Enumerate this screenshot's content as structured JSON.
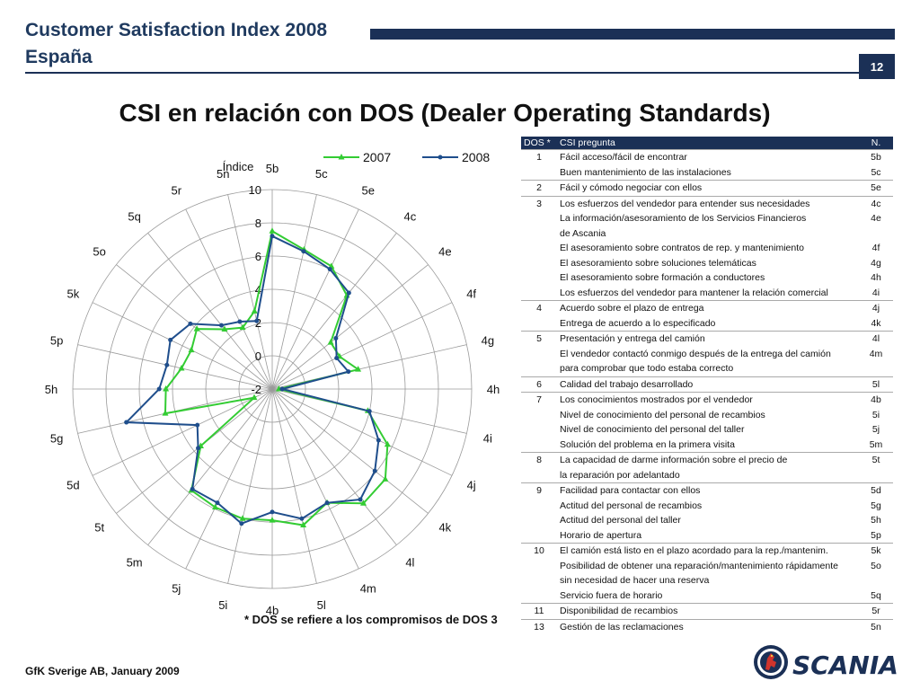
{
  "header": {
    "title": "Customer Satisfaction Index 2008",
    "subtitle": "España",
    "page_number": "12"
  },
  "main_title": "CSI en relación con DOS (Dealer Operating Standards)",
  "chart_data": {
    "type": "radar",
    "y_label": "Índice",
    "rlim": [
      -2,
      10
    ],
    "ticks": [
      "10",
      "8",
      "6",
      "4",
      "2",
      "0",
      "-2"
    ],
    "tick_values": [
      10,
      8,
      6,
      4,
      2,
      0,
      -2
    ],
    "categories": [
      "5b",
      "5c",
      "5e",
      "4c",
      "4e",
      "4f",
      "4g",
      "4h",
      "4i",
      "4j",
      "4k",
      "4l",
      "4m",
      "5l",
      "4b",
      "5i",
      "5j",
      "5m",
      "5t",
      "5d",
      "5g",
      "5h",
      "5p",
      "5k",
      "5o",
      "5q",
      "5r",
      "5n"
    ],
    "legend_position": "top-right",
    "series": [
      {
        "name": "2007",
        "color": "#33cc33",
        "values": [
          7.5,
          6.6,
          6.2,
          5.2,
          2.5,
          2.5,
          3.3,
          -1.6,
          3.9,
          5.7,
          6.7,
          6.8,
          5.6,
          6.4,
          5.9,
          6.0,
          5.9,
          5.8,
          3.5,
          -0.8,
          4.6,
          4.4,
          3.6,
          3.4,
          3.8,
          2.6,
          2.1,
          2.8
        ]
      },
      {
        "name": "2008",
        "color": "#1f4e8c",
        "values": [
          7.2,
          6.5,
          6.0,
          5.4,
          2.9,
          2.3,
          2.7,
          -1.4,
          4.0,
          5.1,
          5.9,
          6.5,
          5.6,
          6.0,
          5.4,
          6.3,
          5.6,
          5.7,
          3.7,
          3.0,
          7.0,
          4.8,
          4.5,
          4.8,
          4.3,
          2.9,
          2.5,
          2.2
        ]
      }
    ]
  },
  "footnote": "* DOS se refiere a los compromisos de DOS 3",
  "table": {
    "headers": [
      "DOS *",
      "CSI pregunta",
      "N."
    ],
    "rows": [
      {
        "group": "1",
        "text": "Fácil acceso/fácil de encontrar",
        "n": "5b",
        "first": true
      },
      {
        "group": "",
        "text": "Buen mantenimiento de las instalaciones",
        "n": "5c"
      },
      {
        "group": "2",
        "text": "Fácil y cómodo negociar con ellos",
        "n": "5e",
        "first": true
      },
      {
        "group": "3",
        "text": "Los esfuerzos del vendedor para entender sus necesidades",
        "n": "4c",
        "first": true
      },
      {
        "group": "",
        "text": "La información/asesoramiento de los Servicios Financieros",
        "n": "4e"
      },
      {
        "group": "",
        "text": "de Ascania",
        "n": ""
      },
      {
        "group": "",
        "text": "El asesoramiento sobre contratos de rep. y mantenimiento",
        "n": "4f"
      },
      {
        "group": "",
        "text": "El asesoramiento sobre soluciones telemáticas",
        "n": "4g"
      },
      {
        "group": "",
        "text": "El asesoramiento sobre formación a conductores",
        "n": "4h"
      },
      {
        "group": "",
        "text": "Los esfuerzos del vendedor para mantener la relación comercial",
        "n": "4i"
      },
      {
        "group": "4",
        "text": "Acuerdo sobre el plazo de entrega",
        "n": "4j",
        "first": true
      },
      {
        "group": "",
        "text": "Entrega de acuerdo a lo especificado",
        "n": "4k"
      },
      {
        "group": "5",
        "text": "Presentación y entrega del camión",
        "n": "4l",
        "first": true
      },
      {
        "group": "",
        "text": "El vendedor contactó conmigo después de la entrega del camión",
        "n": "4m"
      },
      {
        "group": "",
        "text": "para comprobar que todo estaba correcto",
        "n": ""
      },
      {
        "group": "6",
        "text": "Calidad del trabajo desarrollado",
        "n": "5l",
        "first": true
      },
      {
        "group": "7",
        "text": "Los conocimientos mostrados por el vendedor",
        "n": "4b",
        "first": true
      },
      {
        "group": "",
        "text": "Nivel de conocimiento del personal de recambios",
        "n": "5i"
      },
      {
        "group": "",
        "text": "Nivel de conocimiento del personal del taller",
        "n": "5j"
      },
      {
        "group": "",
        "text": "Solución del problema en la primera visita",
        "n": "5m"
      },
      {
        "group": "8",
        "text": "La capacidad de darme información sobre el precio de",
        "n": "5t",
        "first": true
      },
      {
        "group": "",
        "text": "la reparación por adelantado",
        "n": ""
      },
      {
        "group": "9",
        "text": "Facilidad para contactar con ellos",
        "n": "5d",
        "first": true
      },
      {
        "group": "",
        "text": "Actitud del personal de recambios",
        "n": "5g"
      },
      {
        "group": "",
        "text": "Actitud del personal del taller",
        "n": "5h"
      },
      {
        "group": "",
        "text": "Horario de apertura",
        "n": "5p"
      },
      {
        "group": "10",
        "text": "El camión está listo en el plazo acordado para la rep./mantenim.",
        "n": "5k",
        "first": true
      },
      {
        "group": "",
        "text": "Posibilidad de obtener una reparación/mantenimiento rápidamente",
        "n": "5o"
      },
      {
        "group": "",
        "text": "sin necesidad de hacer una reserva",
        "n": ""
      },
      {
        "group": "",
        "text": "Servicio fuera de horario",
        "n": "5q"
      },
      {
        "group": "11",
        "text": "Disponibilidad de recambios",
        "n": "5r",
        "first": true
      },
      {
        "group": "13",
        "text": "Gestión de las reclamaciones",
        "n": "5n",
        "first": true
      }
    ]
  },
  "footer": "GfK Sverige AB, January 2009",
  "logo": {
    "brand": "SCANIA",
    "icon": "griffin-emblem-icon"
  }
}
